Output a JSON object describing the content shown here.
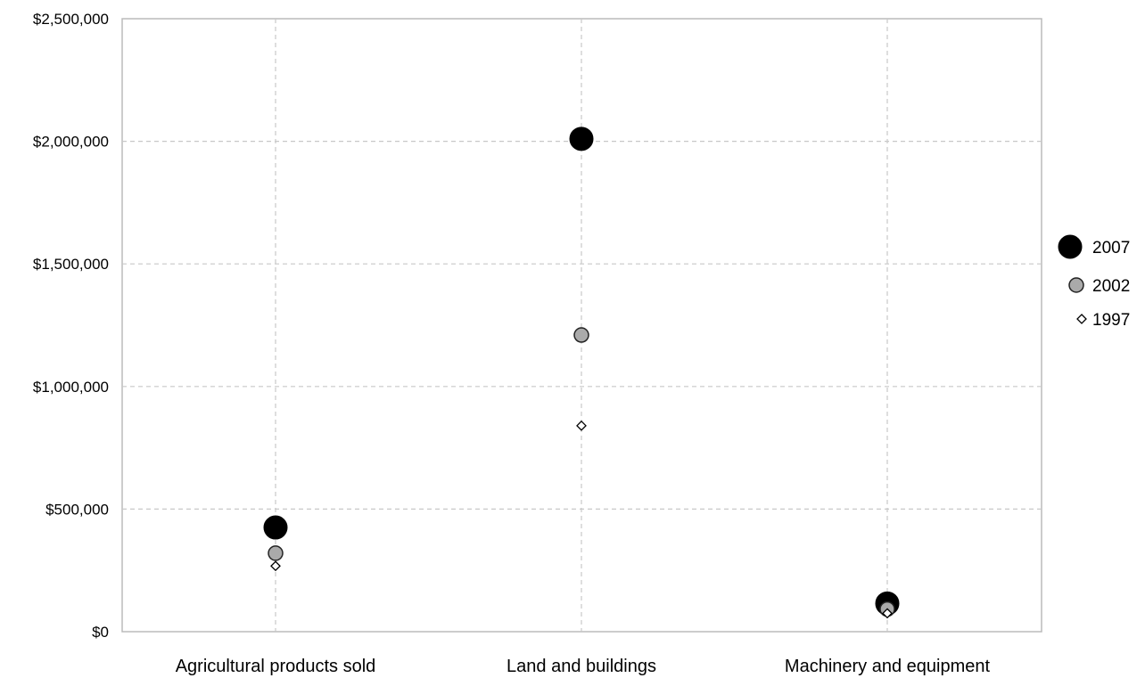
{
  "chart_data": {
    "type": "scatter",
    "title": "",
    "xlabel": "",
    "ylabel": "",
    "categories": [
      "Agricultural products sold",
      "Land and buildings",
      "Machinery and equipment"
    ],
    "series": [
      {
        "name": "2007",
        "values": [
          425000,
          2010000,
          115000
        ],
        "marker": "circle-large",
        "color": "#000000"
      },
      {
        "name": "2002",
        "values": [
          320000,
          1210000,
          92000
        ],
        "marker": "circle-medium",
        "color": "#aaaaaa"
      },
      {
        "name": "1997",
        "values": [
          268000,
          840000,
          75000
        ],
        "marker": "diamond-small",
        "color": "#ffffff"
      }
    ],
    "ylim": [
      0,
      2500000
    ],
    "yticks": [
      0,
      500000,
      1000000,
      1500000,
      2000000,
      2500000
    ],
    "ytick_labels": [
      "$0",
      "$500,000",
      "$1,000,000",
      "$1,500,000",
      "$2,000,000",
      "$2,500,000"
    ],
    "grid": true,
    "legend": {
      "position": "right"
    }
  }
}
